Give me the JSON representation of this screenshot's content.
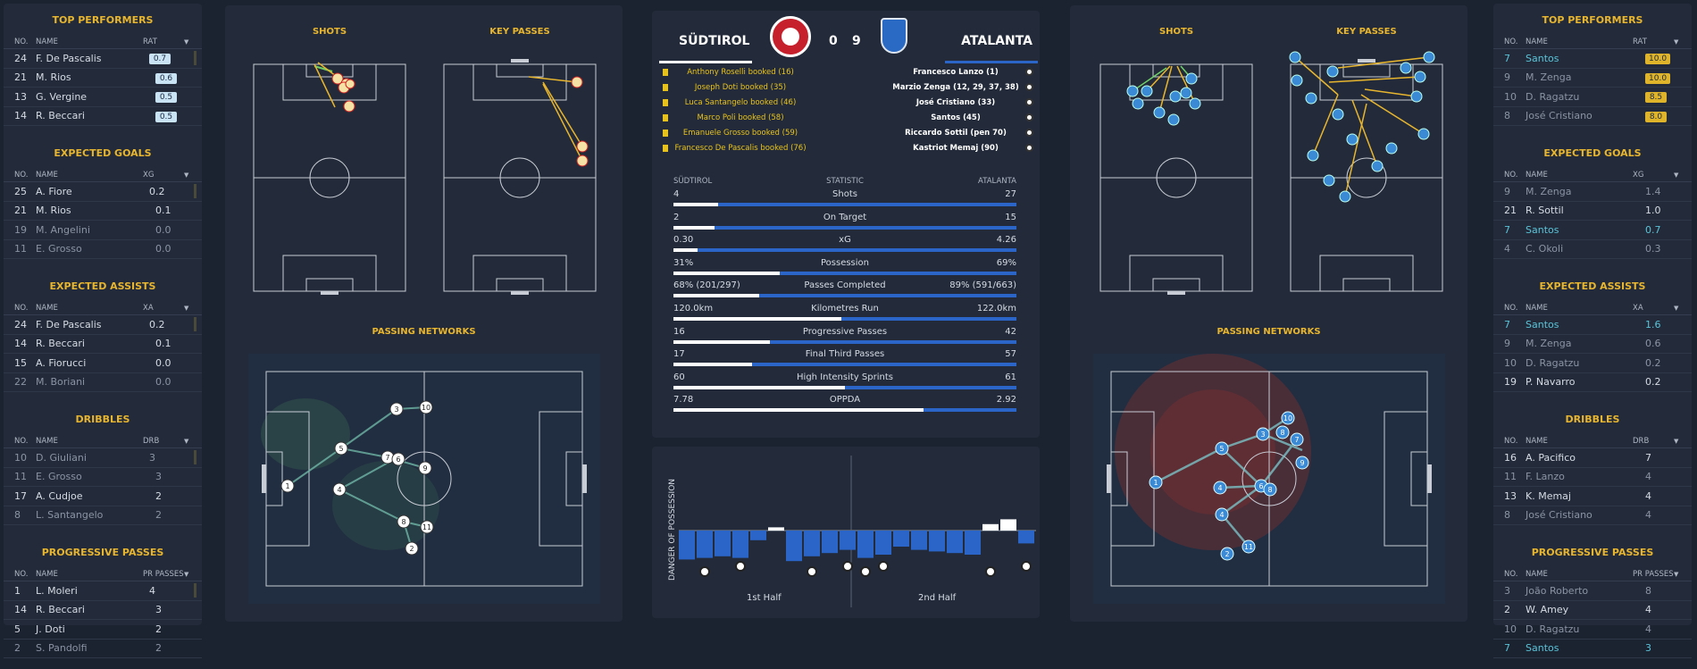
{
  "left": {
    "top_performers": {
      "title": "TOP PERFORMERS",
      "head": [
        "NO.",
        "NAME",
        "RAT"
      ],
      "rows": [
        {
          "no": "24",
          "name": "F. De Pascalis",
          "val": "0.7"
        },
        {
          "no": "21",
          "name": "M. Rios",
          "val": "0.6"
        },
        {
          "no": "13",
          "name": "G. Vergine",
          "val": "0.5"
        },
        {
          "no": "14",
          "name": "R. Beccari",
          "val": "0.5"
        }
      ]
    },
    "expected_goals": {
      "title": "EXPECTED GOALS",
      "head": [
        "NO.",
        "NAME",
        "XG"
      ],
      "rows": [
        {
          "no": "25",
          "name": "A. Fiore",
          "val": "0.2"
        },
        {
          "no": "21",
          "name": "M. Rios",
          "val": "0.1"
        },
        {
          "no": "19",
          "name": "M. Angelini",
          "val": "0.0",
          "dim": true
        },
        {
          "no": "11",
          "name": "E. Grosso",
          "val": "0.0",
          "dim": true
        }
      ]
    },
    "expected_assists": {
      "title": "EXPECTED ASSISTS",
      "head": [
        "NO.",
        "NAME",
        "XA"
      ],
      "rows": [
        {
          "no": "24",
          "name": "F. De Pascalis",
          "val": "0.2"
        },
        {
          "no": "14",
          "name": "R. Beccari",
          "val": "0.1"
        },
        {
          "no": "15",
          "name": "A. Fiorucci",
          "val": "0.0"
        },
        {
          "no": "22",
          "name": "M. Boriani",
          "val": "0.0",
          "dim": true
        }
      ]
    },
    "dribbles": {
      "title": "DRIBBLES",
      "head": [
        "NO.",
        "NAME",
        "DRB"
      ],
      "rows": [
        {
          "no": "10",
          "name": "D. Giuliani",
          "val": "3",
          "dim": true
        },
        {
          "no": "11",
          "name": "E. Grosso",
          "val": "3",
          "dim": true
        },
        {
          "no": "17",
          "name": "A. Cudjoe",
          "val": "2"
        },
        {
          "no": "8",
          "name": "L. Santangelo",
          "val": "2",
          "dim": true
        }
      ]
    },
    "progressive_passes": {
      "title": "PROGRESSIVE PASSES",
      "head": [
        "NO.",
        "NAME",
        "PR PASSES"
      ],
      "rows": [
        {
          "no": "1",
          "name": "L. Moleri",
          "val": "4"
        },
        {
          "no": "14",
          "name": "R. Beccari",
          "val": "3"
        },
        {
          "no": "5",
          "name": "J. Doti",
          "val": "2"
        },
        {
          "no": "2",
          "name": "S. Pandolfi",
          "val": "2",
          "dim": true
        }
      ]
    }
  },
  "right": {
    "top_performers": {
      "title": "TOP PERFORMERS",
      "head": [
        "NO.",
        "NAME",
        "RAT"
      ],
      "rows": [
        {
          "no": "7",
          "name": "Santos",
          "val": "10.0",
          "teal": true
        },
        {
          "no": "9",
          "name": "M. Zenga",
          "val": "10.0",
          "dim": true
        },
        {
          "no": "10",
          "name": "D. Ragatzu",
          "val": "8.5",
          "dim": true
        },
        {
          "no": "8",
          "name": "José Cristiano",
          "val": "8.0",
          "dim": true
        }
      ]
    },
    "expected_goals": {
      "title": "EXPECTED GOALS",
      "head": [
        "NO.",
        "NAME",
        "XG"
      ],
      "rows": [
        {
          "no": "9",
          "name": "M. Zenga",
          "val": "1.4",
          "dim": true
        },
        {
          "no": "21",
          "name": "R. Sottil",
          "val": "1.0"
        },
        {
          "no": "7",
          "name": "Santos",
          "val": "0.7",
          "teal": true
        },
        {
          "no": "4",
          "name": "C. Okoli",
          "val": "0.3",
          "dim": true
        }
      ]
    },
    "expected_assists": {
      "title": "EXPECTED ASSISTS",
      "head": [
        "NO.",
        "NAME",
        "XA"
      ],
      "rows": [
        {
          "no": "7",
          "name": "Santos",
          "val": "1.6",
          "teal": true
        },
        {
          "no": "9",
          "name": "M. Zenga",
          "val": "0.6",
          "dim": true
        },
        {
          "no": "10",
          "name": "D. Ragatzu",
          "val": "0.2",
          "dim": true
        },
        {
          "no": "19",
          "name": "P. Navarro",
          "val": "0.2"
        }
      ]
    },
    "dribbles": {
      "title": "DRIBBLES",
      "head": [
        "NO.",
        "NAME",
        "DRB"
      ],
      "rows": [
        {
          "no": "16",
          "name": "A. Pacifico",
          "val": "7"
        },
        {
          "no": "11",
          "name": "F. Lanzo",
          "val": "4",
          "dim": true
        },
        {
          "no": "13",
          "name": "K. Memaj",
          "val": "4"
        },
        {
          "no": "8",
          "name": "José Cristiano",
          "val": "4",
          "dim": true
        }
      ]
    },
    "progressive_passes": {
      "title": "PROGRESSIVE PASSES",
      "head": [
        "NO.",
        "NAME",
        "PR PASSES"
      ],
      "rows": [
        {
          "no": "3",
          "name": "João Roberto",
          "val": "8",
          "dim": true
        },
        {
          "no": "2",
          "name": "W. Amey",
          "val": "4"
        },
        {
          "no": "10",
          "name": "D. Ragatzu",
          "val": "4",
          "dim": true
        },
        {
          "no": "7",
          "name": "Santos",
          "val": "3",
          "teal": true
        }
      ]
    }
  },
  "pitch_titles": {
    "shots": "SHOTS",
    "key_passes": "KEY PASSES",
    "passing_networks": "PASSING NETWORKS"
  },
  "match": {
    "home": "SÜDTIROL",
    "away": "ATALANTA",
    "home_score": "0",
    "away_score": "9",
    "home_events": [
      "Anthony Roselli booked (16)",
      "Joseph Doti booked (35)",
      "Luca Santangelo booked (46)",
      "Marco Poli booked (58)",
      "Emanuele Grosso booked (59)",
      "Francesco De Pascalis booked (76)"
    ],
    "away_events": [
      "Francesco Lanzo (1)",
      "Marzio Zenga (12, 29, 37, 38)",
      "José Cristiano (33)",
      "Santos (45)",
      "Riccardo Sottil (pen 70)",
      "Kastriot Memaj (90)"
    ]
  },
  "stats_header": {
    "home": "SÜDTIROL",
    "mid": "STATISTIC",
    "away": "ATALANTA"
  },
  "stats": [
    {
      "label": "Shots",
      "home": "4",
      "away": "27",
      "share": 0.13
    },
    {
      "label": "On Target",
      "home": "2",
      "away": "15",
      "share": 0.12
    },
    {
      "label": "xG",
      "home": "0.30",
      "away": "4.26",
      "share": 0.07
    },
    {
      "label": "Possession",
      "home": "31%",
      "away": "69%",
      "share": 0.31
    },
    {
      "label": "Passes Completed",
      "home": "68% (201/297)",
      "away": "89% (591/663)",
      "share": 0.25
    },
    {
      "label": "Kilometres Run",
      "home": "120.0km",
      "away": "122.0km",
      "share": 0.49
    },
    {
      "label": "Progressive Passes",
      "home": "16",
      "away": "42",
      "share": 0.28
    },
    {
      "label": "Final Third Passes",
      "home": "17",
      "away": "57",
      "share": 0.23
    },
    {
      "label": "High Intensity Sprints",
      "home": "60",
      "away": "61",
      "share": 0.5
    },
    {
      "label": "OPPDA",
      "home": "7.78",
      "away": "2.92",
      "share": 0.73
    }
  ],
  "danger": {
    "ylabel": "DANGER OF POSSESSION",
    "first_half": "1st Half",
    "second_half": "2nd Half",
    "bars": [
      -0.9,
      -0.85,
      -0.8,
      -0.85,
      -0.3,
      0.1,
      -0.95,
      -0.8,
      -0.7,
      -0.6,
      -0.85,
      -0.75,
      -0.5,
      -0.6,
      -0.65,
      -0.7,
      -0.75,
      0.2,
      0.35,
      -0.4
    ],
    "goals": [
      1,
      3,
      7,
      9,
      10,
      11,
      17,
      19
    ]
  },
  "colors": {
    "accent": "#e8b52e",
    "home_bar": "#ffffff",
    "away_bar": "#2b65c8",
    "home_dot": "#f3d0cf",
    "away_dot": "#3b8ad6"
  }
}
